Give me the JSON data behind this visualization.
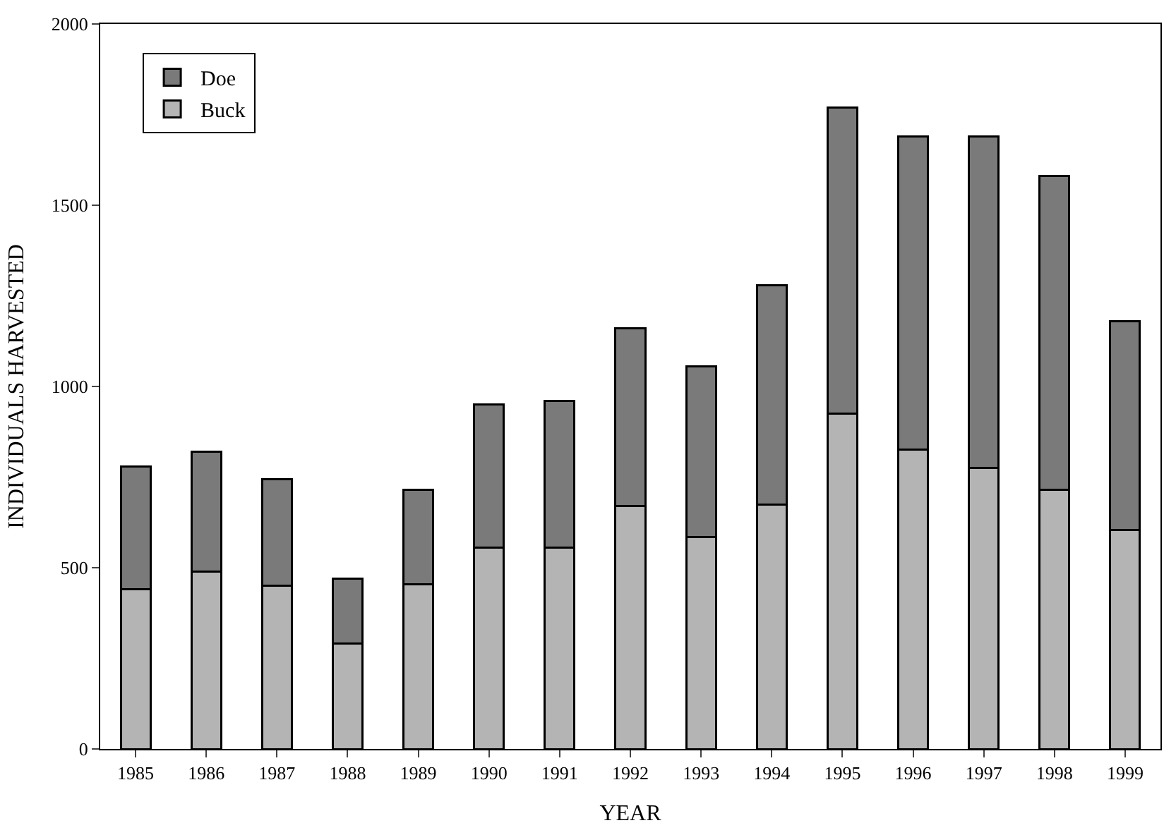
{
  "chart_data": {
    "type": "bar",
    "stacked": true,
    "xlabel": "YEAR",
    "ylabel": "INDIVIDUALS HARVESTED",
    "categories": [
      "1985",
      "1986",
      "1987",
      "1988",
      "1989",
      "1990",
      "1991",
      "1992",
      "1993",
      "1994",
      "1995",
      "1996",
      "1997",
      "1998",
      "1999"
    ],
    "series": [
      {
        "name": "Buck",
        "color": "#b4b4b4",
        "values": [
          440,
          490,
          450,
          290,
          455,
          555,
          555,
          670,
          585,
          675,
          925,
          825,
          775,
          715,
          605
        ]
      },
      {
        "name": "Doe",
        "color": "#7a7a7a",
        "values": [
          340,
          330,
          295,
          180,
          260,
          395,
          405,
          490,
          470,
          605,
          845,
          865,
          915,
          865,
          575
        ]
      }
    ],
    "ylim": [
      0,
      2000
    ],
    "yticks": [
      0,
      500,
      1000,
      1500,
      2000
    ],
    "legend": "top left"
  }
}
